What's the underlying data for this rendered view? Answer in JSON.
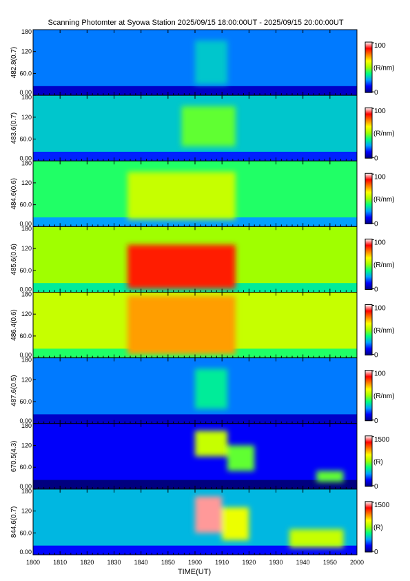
{
  "title": "Scanning Photomter at Syowa Station 2025/09/15 18:00:00UT - 2025/09/15 20:00:00UT",
  "chart_data": {
    "type": "heatmap",
    "xlabel": "TIME(UT)",
    "x_ticks": [
      "1800",
      "1810",
      "1820",
      "1830",
      "1840",
      "1850",
      "1900",
      "1910",
      "1920",
      "1930",
      "1940",
      "1950",
      "2000"
    ],
    "y_ticks": [
      "0.00",
      "60.0",
      "120",
      "180"
    ],
    "ylim": [
      0,
      180
    ],
    "colormap": [
      "#000080",
      "#0000ff",
      "#00a0ff",
      "#00ff80",
      "#a0ff00",
      "#ffff00",
      "#ff8000",
      "#ff0000",
      "#ffffff"
    ],
    "panels": [
      {
        "ylabel": "482.8(0.7)",
        "cbar_max": "100",
        "cbar_min": "0",
        "unit": "(R/nm)",
        "level": 0.22,
        "features": [
          {
            "t0": 1900,
            "t1": 1912,
            "y0": 30,
            "y1": 150,
            "intensity": 0.3
          }
        ]
      },
      {
        "ylabel": "483.6(0.7)",
        "cbar_max": "100",
        "cbar_min": "0",
        "unit": "(R/nm)",
        "level": 0.3,
        "features": [
          {
            "t0": 1855,
            "t1": 1915,
            "y0": 40,
            "y1": 150,
            "intensity": 0.45
          }
        ]
      },
      {
        "ylabel": "484.6(0.6)",
        "cbar_max": "100",
        "cbar_min": "0",
        "unit": "(R/nm)",
        "level": 0.4,
        "features": [
          {
            "t0": 1835,
            "t1": 1915,
            "y0": 20,
            "y1": 150,
            "intensity": 0.55
          }
        ]
      },
      {
        "ylabel": "485.6(0.6)",
        "cbar_max": "100",
        "cbar_min": "0",
        "unit": "(R/nm)",
        "level": 0.5,
        "features": [
          {
            "t0": 1835,
            "t1": 1915,
            "y0": 10,
            "y1": 130,
            "intensity": 0.85
          }
        ]
      },
      {
        "ylabel": "486.4(0.6)",
        "cbar_max": "100",
        "cbar_min": "0",
        "unit": "(R/nm)",
        "level": 0.55,
        "features": [
          {
            "t0": 1835,
            "t1": 1915,
            "y0": 10,
            "y1": 170,
            "intensity": 0.72
          }
        ]
      },
      {
        "ylabel": "487.6(0.5)",
        "cbar_max": "100",
        "cbar_min": "0",
        "unit": "(R/nm)",
        "level": 0.22,
        "features": [
          {
            "t0": 1900,
            "t1": 1912,
            "y0": 40,
            "y1": 150,
            "intensity": 0.35
          }
        ]
      },
      {
        "ylabel": "670.5(4.3)",
        "cbar_max": "1500",
        "cbar_min": "0",
        "unit": "(R)",
        "level": 0.12,
        "features": [
          {
            "t0": 1900,
            "t1": 1912,
            "y0": 90,
            "y1": 160,
            "intensity": 0.55
          },
          {
            "t0": 1912,
            "t1": 1922,
            "y0": 50,
            "y1": 120,
            "intensity": 0.45
          },
          {
            "t0": 1945,
            "t1": 1955,
            "y0": 20,
            "y1": 50,
            "intensity": 0.45
          }
        ]
      },
      {
        "ylabel": "844.6(0.7)",
        "cbar_max": "1500",
        "cbar_min": "0",
        "unit": "(R)",
        "level": 0.28,
        "features": [
          {
            "t0": 1900,
            "t1": 1910,
            "y0": 60,
            "y1": 160,
            "intensity": 0.95
          },
          {
            "t0": 1910,
            "t1": 1920,
            "y0": 40,
            "y1": 130,
            "intensity": 0.6
          },
          {
            "t0": 1935,
            "t1": 1955,
            "y0": 20,
            "y1": 70,
            "intensity": 0.55
          }
        ]
      }
    ]
  }
}
